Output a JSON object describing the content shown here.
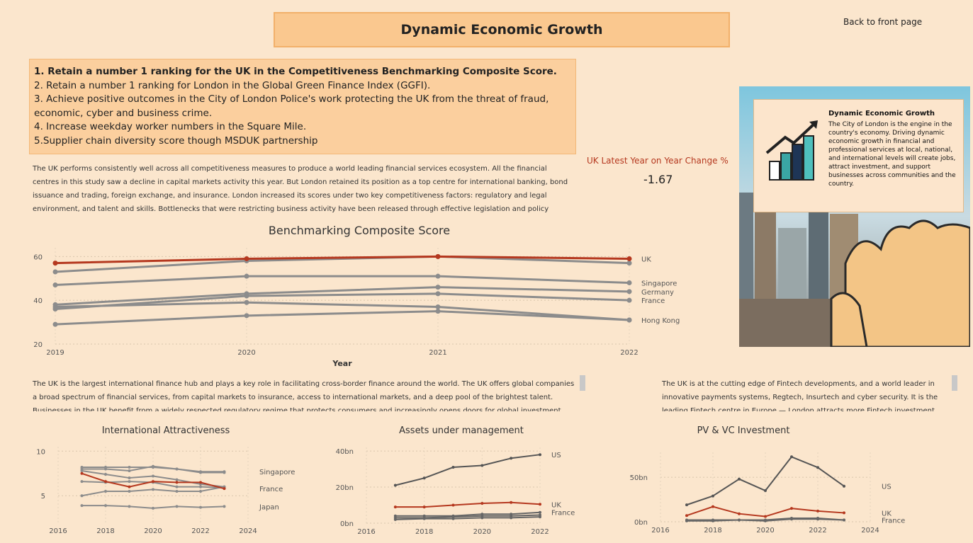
{
  "header": {
    "title": "Dynamic Economic Growth",
    "link": "Back to front page"
  },
  "objectives": [
    "1. Retain a number 1 ranking for the UK in the Competitiveness Benchmarking Composite Score.",
    "2. Retain a number 1 ranking for London in the Global Green Finance Index (GGFI).",
    "3. Achieve positive outcomes in the City of London Police's work protecting the UK from the threat of fraud, economic, cyber and business crime.",
    "4. Increase weekday worker numbers in the Square Mile.",
    "5.Supplier chain diversity score though MSDUK partnership"
  ],
  "intro": "The UK performs consistently well across all competitiveness measures to produce a world leading financial services ecosystem. All the financial centres in this study saw a decline in capital markets activity this year. But London retained its position as a top centre for international banking, bond issuance and trading, foreign exchange, and insurance. London increased its scores under two key competitiveness factors: regulatory and legal environment, and talent and skills. Bottlenecks that were restricting business activity have been released through effective legislation and policy",
  "kpi": {
    "label": "UK Latest Year on Year Change %",
    "value": -1.67
  },
  "card": {
    "title": "Dynamic Economic Growth",
    "text": "The City of London is the engine in the country's economy. Driving dynamic economic growth in financial and professional services at local, national, and international levels will create jobs, attract investment, and support businesses across communities and the country."
  },
  "paragraphs": [
    "The UK is the largest international finance hub and plays a key role in facilitating cross-border finance around the world. The UK offers global companies a broad spectrum of financial services, from capital markets to insurance, access to international markets, and a deep pool of the brightest talent. Businesses in the UK benefit from a widely respected regulatory regime that protects consumers and increasingly opens doors for global investment",
    "The UK is at the cutting edge of Fintech developments, and a world leader in innovative payments systems, Regtech, Insurtech and cyber security. It is the leading Fintech centre in Europe — London attracts more Fintech investment"
  ],
  "chart_data": [
    {
      "type": "line",
      "title": "Benchmarking Composite Score",
      "x_label": "Year",
      "x": [
        2019,
        2020,
        2021,
        2022
      ],
      "xlim": [
        2019,
        2022
      ],
      "xticks": [
        2019,
        2020,
        2021,
        2022
      ],
      "ylim": [
        20,
        64
      ],
      "yticks": [
        20,
        40,
        60
      ],
      "grid": true,
      "series": [
        {
          "name": null,
          "color": "#8c8c8c",
          "values": [
            53,
            58,
            60,
            57
          ]
        },
        {
          "name": "Singapore",
          "color": "#8c8c8c",
          "values": [
            47,
            51,
            51,
            48
          ]
        },
        {
          "name": "Germany",
          "color": "#8c8c8c",
          "values": [
            38,
            43,
            46,
            44
          ]
        },
        {
          "name": "France",
          "color": "#8c8c8c",
          "values": [
            36,
            42,
            43,
            40
          ]
        },
        {
          "name": null,
          "color": "#8c8c8c",
          "values": [
            37,
            39,
            37,
            31
          ]
        },
        {
          "name": "Hong Kong",
          "color": "#8c8c8c",
          "values": [
            29,
            33,
            35,
            31
          ]
        },
        {
          "name": "UK",
          "color": "#b5381f",
          "values": [
            57,
            59,
            60,
            59
          ]
        }
      ]
    },
    {
      "type": "line",
      "title": "International Attractiveness",
      "x": [
        2017,
        2018,
        2019,
        2020,
        2021,
        2022,
        2023
      ],
      "xlim": [
        2016,
        2024
      ],
      "xticks": [
        2016,
        2018,
        2020,
        2022,
        2024
      ],
      "ylim": [
        2,
        10.5
      ],
      "yticks": [
        5,
        10
      ],
      "grid": true,
      "series": [
        {
          "name": "Singapore",
          "color": "#8c8c8c",
          "values": [
            8.2,
            8.2,
            8.2,
            8.2,
            8.0,
            7.7,
            7.7
          ]
        },
        {
          "name": null,
          "color": "#8c8c8c",
          "values": [
            8.0,
            8.0,
            7.8,
            8.3,
            8.0,
            7.6,
            7.6
          ]
        },
        {
          "name": null,
          "color": "#8c8c8c",
          "values": [
            7.8,
            7.4,
            7.0,
            7.2,
            6.8,
            6.3,
            6.0
          ]
        },
        {
          "name": null,
          "color": "#8c8c8c",
          "values": [
            6.6,
            6.5,
            6.6,
            6.5,
            6.0,
            6.0,
            5.9
          ]
        },
        {
          "name": null,
          "color": "#8c8c8c",
          "values": [
            5.0,
            5.5,
            5.5,
            5.7,
            5.5,
            5.5,
            6.0
          ]
        },
        {
          "name": "Japan",
          "color": "#8c8c8c",
          "values": [
            3.9,
            3.9,
            3.8,
            3.6,
            3.8,
            3.7,
            3.8
          ]
        },
        {
          "name": "France",
          "color": "#b5381f",
          "values": [
            7.5,
            6.6,
            6.0,
            6.6,
            6.5,
            6.5,
            5.8
          ]
        }
      ]
    },
    {
      "type": "line",
      "title": "Assets under management",
      "x": [
        2017,
        2018,
        2019,
        2020,
        2021,
        2022
      ],
      "xlim": [
        2016,
        2022
      ],
      "xticks": [
        2016,
        2018,
        2020,
        2022
      ],
      "ylim": [
        0,
        42
      ],
      "yticks": [
        {
          "value": 0,
          "label": "0bn"
        },
        {
          "value": 20,
          "label": "20bn"
        },
        {
          "value": 40,
          "label": "40bn"
        }
      ],
      "grid": true,
      "series": [
        {
          "name": "US",
          "color": "#555555",
          "values": [
            21,
            25,
            31,
            32,
            36,
            38
          ]
        },
        {
          "name": "France",
          "color": "#666666",
          "values": [
            4,
            4,
            4,
            5,
            5,
            6
          ]
        },
        {
          "name": null,
          "color": "#666666",
          "values": [
            3,
            3,
            3.5,
            4,
            4,
            4.5
          ]
        },
        {
          "name": null,
          "color": "#666666",
          "values": [
            2,
            2.5,
            2.5,
            3,
            3,
            3.5
          ]
        },
        {
          "name": "UK",
          "color": "#b5381f",
          "values": [
            9,
            9,
            10,
            11,
            11.5,
            10.5
          ]
        }
      ]
    },
    {
      "type": "line",
      "title": "PV & VC Investment",
      "x": [
        2017,
        2018,
        2019,
        2020,
        2021,
        2022,
        2023
      ],
      "xlim": [
        2016,
        2024
      ],
      "xticks": [
        2016,
        2018,
        2020,
        2022,
        2024
      ],
      "ylim": [
        0,
        78
      ],
      "yticks": [
        {
          "value": 0,
          "label": "0bn"
        },
        {
          "value": 50,
          "label": "50bn"
        }
      ],
      "grid": true,
      "series": [
        {
          "name": "US",
          "color": "#555555",
          "values": [
            19,
            29,
            48,
            35,
            73,
            61,
            40
          ]
        },
        {
          "name": "France",
          "color": "#666666",
          "values": [
            1,
            1,
            2,
            1,
            3,
            3,
            2
          ]
        },
        {
          "name": null,
          "color": "#666666",
          "values": [
            2,
            2,
            2,
            2,
            4,
            4,
            2
          ]
        },
        {
          "name": "UK",
          "color": "#b5381f",
          "values": [
            7,
            17,
            9,
            6,
            15,
            12,
            10
          ]
        }
      ]
    }
  ]
}
